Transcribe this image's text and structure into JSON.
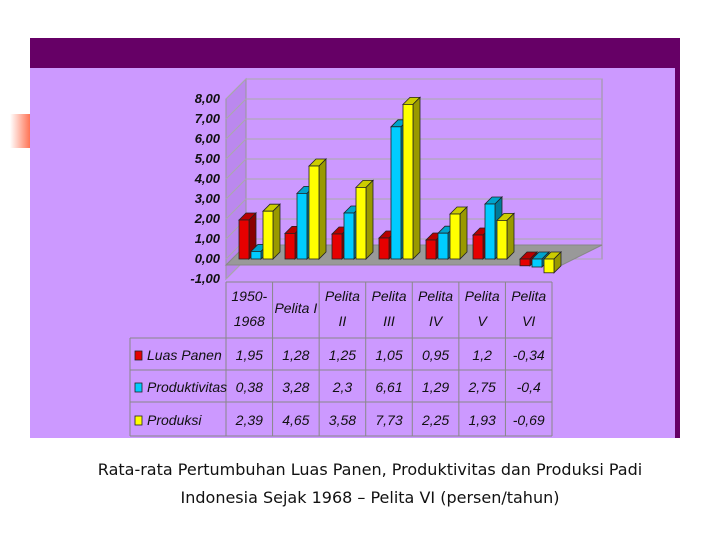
{
  "chart_data": {
    "type": "bar",
    "categories": [
      [
        "1950-",
        "1968"
      ],
      [
        "Pelita I"
      ],
      [
        "Pelita",
        "II"
      ],
      [
        "Pelita",
        "III"
      ],
      [
        "Pelita",
        "IV"
      ],
      [
        "Pelita",
        "V"
      ],
      [
        "Pelita",
        "VI"
      ]
    ],
    "series": [
      {
        "name": "Luas Panen",
        "color": "#e60000",
        "values": [
          1.95,
          1.28,
          1.25,
          1.05,
          0.95,
          1.2,
          -0.34
        ],
        "labels": [
          "1,95",
          "1,28",
          "1,25",
          "1,05",
          "0,95",
          "1,2",
          "-0,34"
        ]
      },
      {
        "name": "Produktivitas",
        "color": "#00ccff",
        "values": [
          0.38,
          3.28,
          2.3,
          6.61,
          1.29,
          2.75,
          -0.4
        ],
        "labels": [
          "0,38",
          "3,28",
          "2,3",
          "6,61",
          "1,29",
          "2,75",
          "-0,4"
        ]
      },
      {
        "name": "Produksi",
        "color": "#ffff00",
        "values": [
          2.39,
          4.65,
          3.58,
          7.73,
          2.25,
          1.93,
          -0.69
        ],
        "labels": [
          "2,39",
          "4,65",
          "3,58",
          "7,73",
          "2,25",
          "1,93",
          "-0,69"
        ]
      }
    ],
    "yticks": [
      8,
      7,
      6,
      5,
      4,
      3,
      2,
      1,
      0,
      -1
    ],
    "ytick_labels": [
      "8,00",
      "7,00",
      "6,00",
      "5,00",
      "4,00",
      "3,00",
      "2,00",
      "1,00",
      "0,00",
      "-1,00"
    ],
    "ylim": [
      -1,
      8
    ],
    "grid": true,
    "legend": "data-table"
  },
  "caption": {
    "line1": "Rata-rata Pertumbuhan Luas Panen, Produktivitas dan Produksi Padi",
    "line2": "Indonesia Sejak 1968 – Pelita VI (persen/tahun)"
  }
}
